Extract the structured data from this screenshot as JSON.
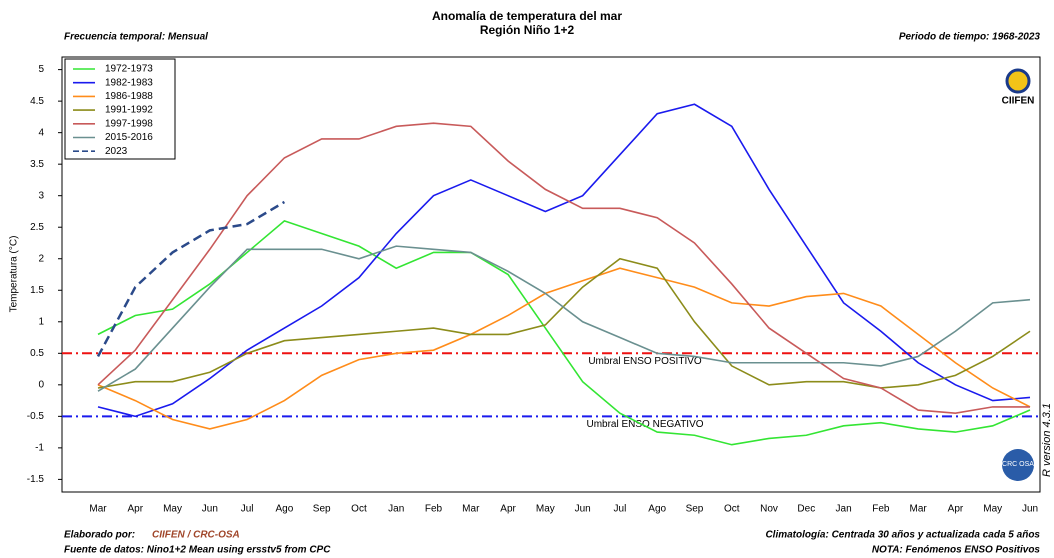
{
  "chart_data": {
    "type": "line",
    "title": "Anomalía de temperatura del mar",
    "subtitle": "Región Niño 1+2",
    "frequency": "Frecuencia temporal: Mensual",
    "period": "Periodo de tiempo: 1968-2023",
    "ylabel": "Temperatura (°C)",
    "categories": [
      "Mar",
      "Apr",
      "May",
      "Jun",
      "Jul",
      "Ago",
      "Sep",
      "Oct",
      "Jan",
      "Feb",
      "Mar",
      "Apr",
      "May",
      "Jun",
      "Jul",
      "Ago",
      "Sep",
      "Oct",
      "Nov",
      "Dec",
      "Jan",
      "Feb",
      "Mar",
      "Apr",
      "May",
      "Jun"
    ],
    "ylim": [
      -1.7,
      5.2
    ],
    "yticks": [
      -1.5,
      -1,
      -0.5,
      0,
      0.5,
      1,
      1.5,
      2,
      2.5,
      3,
      3.5,
      4,
      4.5,
      5
    ],
    "legend": "top-left",
    "series": [
      {
        "name": "1972-1973",
        "color": "#33e533",
        "values": [
          0.8,
          1.1,
          1.2,
          1.6,
          2.1,
          2.6,
          2.4,
          2.2,
          1.85,
          2.1,
          2.1,
          1.75,
          0.9,
          0.05,
          -0.45,
          -0.75,
          -0.8,
          -0.95,
          -0.85,
          -0.8,
          -0.65,
          -0.6,
          -0.7,
          -0.75,
          -0.65,
          -0.4
        ]
      },
      {
        "name": "1982-1983",
        "color": "#1a1aee",
        "values": [
          -0.35,
          -0.5,
          -0.3,
          0.1,
          0.55,
          0.9,
          1.25,
          1.7,
          2.4,
          3.0,
          3.25,
          3.0,
          2.75,
          3.0,
          3.65,
          4.3,
          4.45,
          4.1,
          3.1,
          2.2,
          1.3,
          0.85,
          0.35,
          0.0,
          -0.25,
          -0.2
        ]
      },
      {
        "name": "1986-1988",
        "color": "#ff8c1a",
        "values": [
          0.0,
          -0.25,
          -0.55,
          -0.7,
          -0.55,
          -0.25,
          0.15,
          0.4,
          0.5,
          0.55,
          0.8,
          1.1,
          1.45,
          1.65,
          1.85,
          1.7,
          1.55,
          1.3,
          1.25,
          1.4,
          1.45,
          1.25,
          0.8,
          0.35,
          -0.05,
          -0.35
        ]
      },
      {
        "name": "1991-1992",
        "color": "#8c8c1a",
        "values": [
          -0.05,
          0.05,
          0.05,
          0.2,
          0.5,
          0.7,
          0.75,
          0.8,
          0.85,
          0.9,
          0.8,
          0.8,
          0.95,
          1.55,
          2.0,
          1.85,
          1.0,
          0.3,
          0.0,
          0.05,
          0.05,
          -0.05,
          0.0,
          0.15,
          0.45,
          0.85
        ]
      },
      {
        "name": "1997-1998",
        "color": "#c85a5a",
        "values": [
          0.0,
          0.55,
          1.35,
          2.15,
          3.0,
          3.6,
          3.9,
          3.9,
          4.1,
          4.15,
          4.1,
          3.55,
          3.1,
          2.8,
          2.8,
          2.65,
          2.25,
          1.6,
          0.9,
          0.5,
          0.1,
          -0.05,
          -0.4,
          -0.45,
          -0.35,
          -0.35
        ]
      },
      {
        "name": "2015-2016",
        "color": "#6a9090",
        "values": [
          -0.1,
          0.25,
          0.9,
          1.55,
          2.15,
          2.15,
          2.15,
          2.0,
          2.2,
          2.15,
          2.1,
          1.8,
          1.45,
          1.0,
          0.75,
          0.5,
          0.45,
          0.35,
          0.35,
          0.35,
          0.35,
          0.3,
          0.45,
          0.85,
          1.3,
          1.35
        ]
      },
      {
        "name": "2023",
        "color": "#2b4a8a",
        "dashed": true,
        "values": [
          0.45,
          1.55,
          2.1,
          2.45,
          2.55,
          2.9,
          null,
          null,
          null,
          null,
          null,
          null,
          null,
          null,
          null,
          null,
          null,
          null,
          null,
          null,
          null,
          null,
          null,
          null,
          null,
          null
        ]
      }
    ],
    "thresholds": [
      {
        "value": 0.5,
        "color": "#ee1111",
        "label": "Umbral ENSO POSITIVO"
      },
      {
        "value": -0.5,
        "color": "#1a1aee",
        "label": "Umbral ENSO NEGATIVO"
      }
    ],
    "made_by_label": "Elaborado por:",
    "made_by": "CIIFEN / CRC-OSA",
    "source": "Fuente de datos: Nino1+2 Mean using ersstv5 from CPC",
    "climatology": "Climatología: Centrada 30 años y actualizada cada 5 años",
    "note": "NOTA: Fenómenos ENSO Positivos",
    "version": "R version 4.3.1",
    "logo_top": "CIIFEN",
    "logo_bottom": "CRC OSA"
  }
}
